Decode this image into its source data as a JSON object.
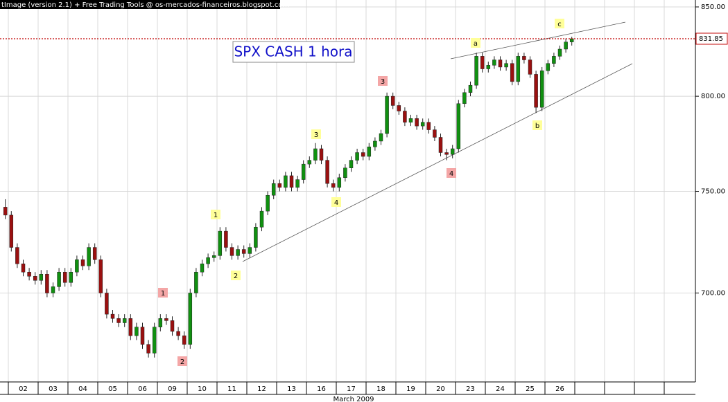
{
  "chart_data": {
    "type": "candlestick",
    "header": "tImage (version 2.1) + Free Trading Tools @ os-mercados-financeiros.blogspot.com",
    "title": "SPX CASH 1 hora",
    "x_label": "March 2009",
    "days": [
      "02",
      "03",
      "04",
      "05",
      "06",
      "09",
      "10",
      "11",
      "12",
      "13",
      "16",
      "17",
      "18",
      "19",
      "20",
      "23",
      "24",
      "25",
      "26",
      null,
      null,
      null,
      null
    ],
    "candles": {
      "open": [
        742,
        738,
        722,
        714,
        710,
        708,
        706,
        709,
        700,
        703,
        710,
        705,
        710,
        716,
        713,
        722,
        716,
        700,
        690,
        688,
        686,
        688,
        680,
        684,
        676,
        672,
        684,
        688,
        687,
        682,
        680,
        676,
        700,
        710,
        714,
        717,
        718,
        730,
        722,
        718,
        721,
        719,
        722,
        732,
        740,
        748,
        754,
        752,
        758,
        752,
        756,
        764,
        766,
        772,
        766,
        754,
        752,
        757,
        762,
        766,
        770,
        768,
        773,
        776,
        780,
        800,
        795,
        792,
        786,
        788,
        784,
        786,
        782,
        778,
        770,
        769,
        772,
        796,
        802,
        806,
        822,
        815,
        817,
        820,
        816,
        818,
        808,
        822,
        820,
        812,
        794,
        814,
        818,
        822,
        826,
        830
      ],
      "high": [
        746,
        740,
        724,
        716,
        712,
        710,
        711,
        711,
        705,
        712,
        712,
        712,
        718,
        718,
        724,
        724,
        718,
        702,
        692,
        690,
        690,
        690,
        686,
        686,
        678,
        686,
        690,
        690,
        689,
        684,
        682,
        702,
        712,
        716,
        719,
        720,
        732,
        732,
        724,
        723,
        723,
        724,
        734,
        742,
        750,
        756,
        756,
        760,
        760,
        758,
        766,
        768,
        775,
        774,
        768,
        756,
        759,
        764,
        768,
        772,
        772,
        775,
        778,
        782,
        802,
        802,
        797,
        794,
        790,
        790,
        788,
        788,
        784,
        780,
        772,
        774,
        798,
        804,
        808,
        824,
        824,
        819,
        822,
        822,
        820,
        820,
        824,
        824,
        822,
        814,
        816,
        820,
        824,
        828,
        832,
        833
      ],
      "low": [
        736,
        720,
        712,
        708,
        706,
        704,
        704,
        698,
        698,
        701,
        703,
        703,
        708,
        711,
        711,
        714,
        698,
        688,
        686,
        684,
        684,
        678,
        678,
        674,
        670,
        670,
        682,
        685,
        680,
        678,
        674,
        674,
        698,
        708,
        712,
        715,
        716,
        720,
        716,
        716,
        717,
        717,
        720,
        730,
        738,
        746,
        750,
        750,
        750,
        750,
        754,
        762,
        764,
        764,
        752,
        750,
        750,
        755,
        760,
        764,
        766,
        766,
        771,
        774,
        778,
        793,
        790,
        784,
        784,
        782,
        782,
        780,
        776,
        768,
        766,
        767,
        770,
        794,
        800,
        804,
        813,
        813,
        815,
        814,
        814,
        806,
        806,
        818,
        810,
        791,
        792,
        812,
        816,
        820,
        824,
        828
      ],
      "close": [
        738,
        722,
        714,
        710,
        708,
        706,
        709,
        700,
        703,
        710,
        705,
        710,
        716,
        713,
        722,
        716,
        700,
        690,
        688,
        686,
        688,
        680,
        684,
        676,
        672,
        684,
        688,
        687,
        682,
        680,
        676,
        700,
        710,
        714,
        717,
        718,
        730,
        722,
        718,
        721,
        719,
        722,
        732,
        740,
        748,
        754,
        752,
        758,
        752,
        756,
        764,
        766,
        772,
        766,
        754,
        752,
        757,
        762,
        766,
        770,
        768,
        773,
        776,
        780,
        800,
        795,
        792,
        786,
        788,
        784,
        786,
        782,
        778,
        770,
        769,
        772,
        796,
        802,
        806,
        822,
        815,
        817,
        820,
        816,
        818,
        808,
        822,
        820,
        812,
        794,
        814,
        818,
        822,
        826,
        830,
        831.85
      ]
    },
    "up_color": "#109010",
    "down_color": "#9a1010",
    "ylim": [
      659,
      854
    ],
    "log_scale": true,
    "grid": true,
    "yticks": [
      {
        "value": 850,
        "label": "850.00"
      },
      {
        "value": 800,
        "label": "800.00"
      },
      {
        "value": 750,
        "label": "750.00"
      },
      {
        "value": 700,
        "label": "700.00"
      }
    ],
    "annotations": [
      {
        "text": "1",
        "color": "#ffff99"
      },
      {
        "text": "2",
        "color": "#ffff99"
      },
      {
        "text": "3",
        "color": "#ffff99"
      },
      {
        "text": "4",
        "color": "#ffff99"
      },
      {
        "text": "3",
        "color": "#f4a6a6"
      },
      {
        "text": "4",
        "color": "#f4a6a6"
      },
      {
        "text": "a",
        "color": "#ffff99"
      },
      {
        "text": "b",
        "color": "#ffff99"
      },
      {
        "text": "c",
        "color": "#ffff99"
      },
      {
        "text": "1",
        "color": "#f4a6a6"
      },
      {
        "text": "2",
        "color": "#f4a6a6"
      }
    ]
  }
}
